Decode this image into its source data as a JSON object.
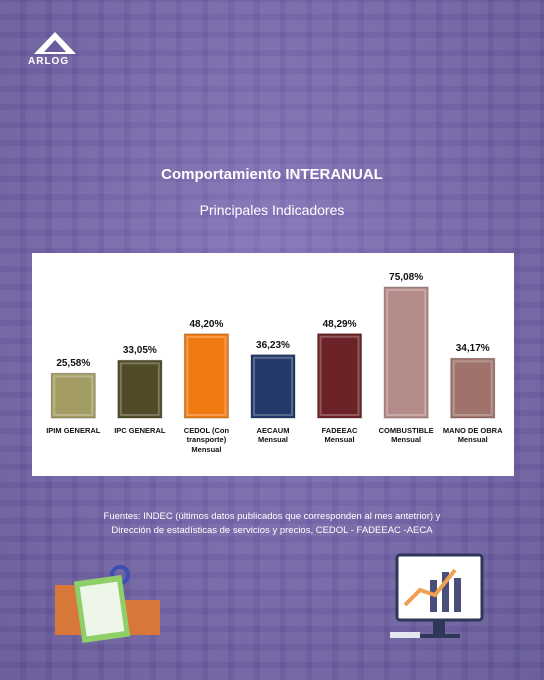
{
  "logo": "ARLOG",
  "chart_data": {
    "type": "bar",
    "title": "Comportamiento INTERANUAL",
    "subtitle": "Principales Indicadores",
    "categories": [
      "IPIM GENERAL",
      "IPC GENERAL",
      "CEDOL (Con transporte) Mensual",
      "AECAUM Mensual",
      "FADEEAC Mensual",
      "COMBUSTIBLE Mensual",
      "MANO DE OBRA Mensual"
    ],
    "values": [
      25.58,
      33.05,
      48.2,
      36.23,
      48.29,
      75.08,
      34.17
    ],
    "value_labels": [
      "25,58%",
      "33,05%",
      "48,20%",
      "36,23%",
      "48,29%",
      "75,08%",
      "34,17%"
    ],
    "colors": [
      "#a39c63",
      "#504a27",
      "#f07a12",
      "#22396a",
      "#6c2327",
      "#b38b88",
      "#9f736b"
    ]
  },
  "source": "Fuentes: INDEC (últimos datos publicados que corresponden al mes antetrior) y Dirección de estadísticas de servicios y precios, CEDOL - FADEEAC -AECA"
}
